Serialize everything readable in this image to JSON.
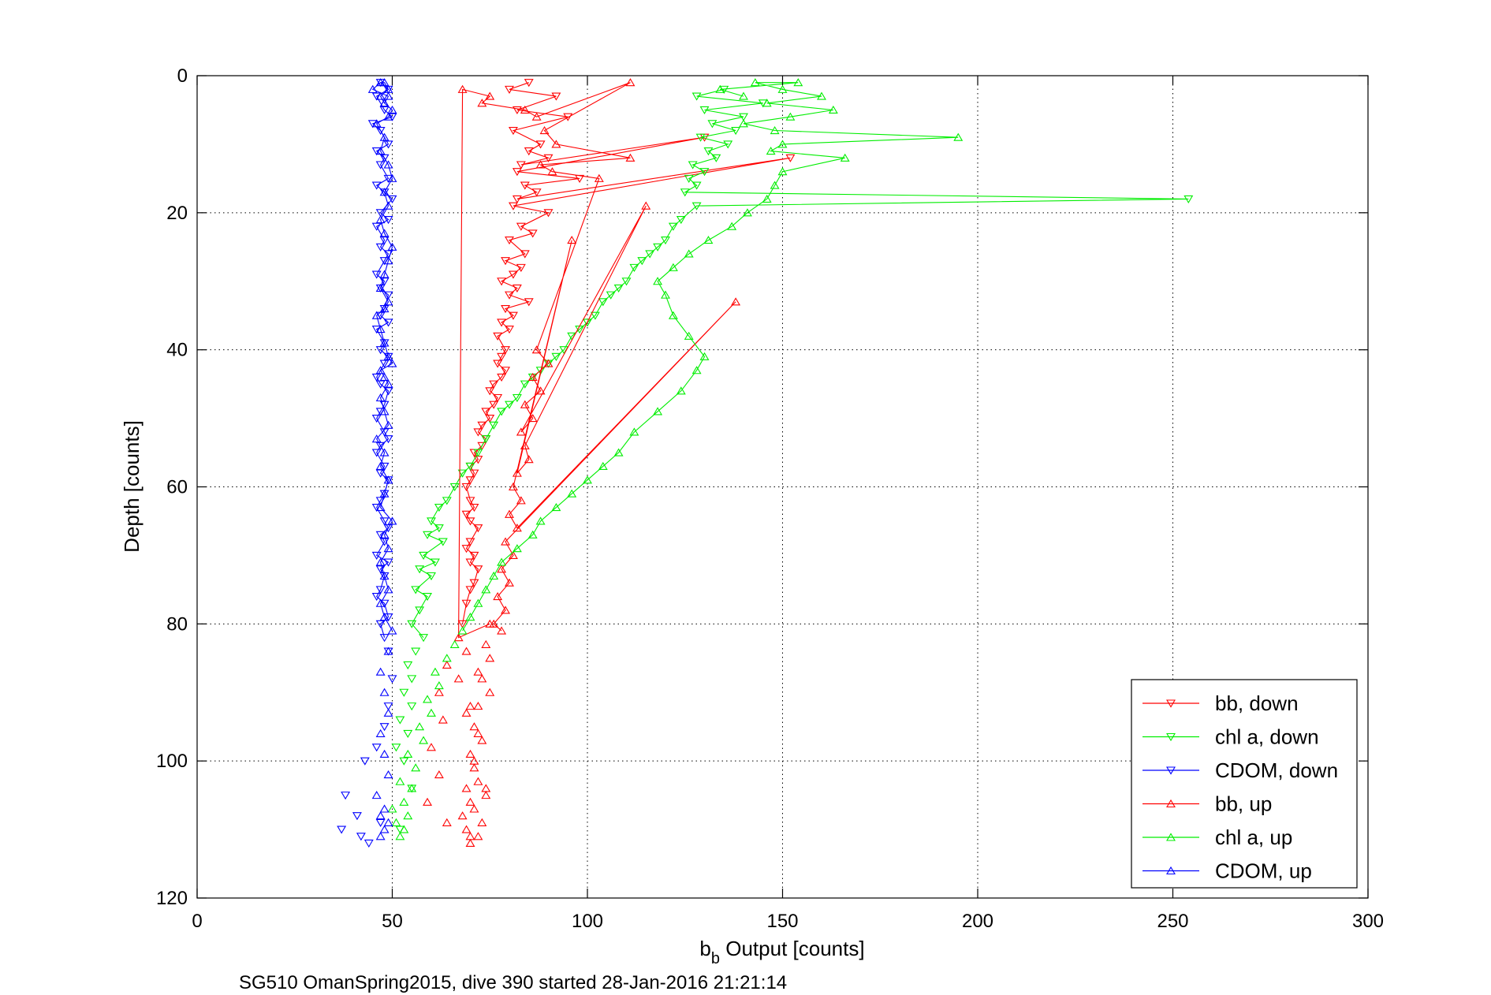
{
  "chart_data": {
    "type": "line",
    "xlabel_main": "b",
    "xlabel_sub": "b",
    "xlabel_rest": " Output [counts]",
    "ylabel": "Depth [counts]",
    "caption": "SG510 OmanSpring2015, dive 390 started 28-Jan-2016 21:21:14",
    "xlim": [
      0,
      300
    ],
    "ylim": [
      0,
      120
    ],
    "y_reversed": true,
    "grid": true,
    "legend_position": "bottom-right",
    "x_ticks": [
      "0",
      "50",
      "100",
      "150",
      "200",
      "250",
      "300"
    ],
    "y_ticks": [
      "0",
      "20",
      "40",
      "60",
      "80",
      "100",
      "120"
    ],
    "series": [
      {
        "name": "bb, down",
        "color": "#ff0000",
        "marker": "triangle-down",
        "x": [
          85,
          80,
          92,
          82,
          95,
          81,
          88,
          85,
          90,
          83,
          130,
          82,
          98,
          84,
          87,
          82,
          152,
          81,
          90,
          83,
          86,
          80,
          84,
          79,
          83,
          81,
          78,
          82,
          80,
          85,
          79,
          81,
          78,
          80,
          77,
          79,
          78,
          77,
          79,
          78,
          76,
          75,
          77,
          76,
          74,
          75,
          73,
          72,
          74,
          73,
          71,
          72,
          70,
          71,
          70,
          69,
          70,
          71,
          69,
          70,
          72,
          70,
          69,
          71,
          70,
          72,
          71,
          70,
          69,
          68
        ],
        "y": [
          1,
          2,
          3,
          5,
          6,
          8,
          10,
          11,
          12,
          13,
          9,
          14,
          15,
          16,
          17,
          18,
          12,
          19,
          20,
          22,
          23,
          24,
          26,
          27,
          28,
          29,
          30,
          31,
          32,
          33,
          34,
          35,
          36,
          37,
          38,
          40,
          41,
          42,
          43,
          44,
          45,
          46,
          47,
          48,
          49,
          50,
          51,
          52,
          53,
          54,
          55,
          56,
          57,
          58,
          59,
          60,
          62,
          63,
          64,
          65,
          66,
          68,
          69,
          70,
          71,
          72,
          74,
          75,
          77,
          80
        ]
      },
      {
        "name": "chl a, down",
        "color": "#00ee00",
        "marker": "triangle-down",
        "x": [
          135,
          128,
          145,
          130,
          140,
          132,
          138,
          129,
          136,
          131,
          133,
          127,
          130,
          126,
          128,
          125,
          254,
          128,
          124,
          122,
          120,
          118,
          116,
          114,
          112,
          110,
          108,
          106,
          104,
          102,
          100,
          98,
          96,
          94,
          92,
          90,
          88,
          86,
          84,
          82,
          80,
          78,
          76,
          74,
          72,
          70,
          68,
          66,
          64,
          62,
          60,
          62,
          59,
          63,
          58,
          61,
          57,
          60,
          56,
          59,
          57,
          55,
          58,
          56,
          54,
          55,
          53,
          55,
          52,
          54,
          51,
          53,
          55,
          52
        ],
        "y": [
          2,
          3,
          4,
          5,
          6,
          7,
          8,
          9,
          10,
          11,
          12,
          13,
          14,
          15,
          16,
          17,
          18,
          19,
          21,
          22,
          24,
          25,
          26,
          27,
          28,
          30,
          31,
          32,
          33,
          35,
          36,
          37,
          38,
          40,
          41,
          42,
          43,
          44,
          45,
          47,
          48,
          49,
          51,
          53,
          55,
          57,
          58,
          60,
          62,
          63,
          65,
          66,
          67,
          68,
          70,
          71,
          72,
          73,
          75,
          76,
          78,
          80,
          82,
          84,
          86,
          88,
          90,
          92,
          94,
          96,
          98,
          100,
          104,
          110
        ]
      },
      {
        "name": "CDOM, down",
        "color": "#0000ff",
        "marker": "triangle-down",
        "x": [
          47,
          49,
          46,
          48,
          50,
          45,
          47,
          49,
          46,
          48,
          47,
          49,
          46,
          48,
          50,
          47,
          49,
          46,
          48,
          47,
          49,
          48,
          46,
          48,
          47,
          49,
          48,
          47,
          49,
          46,
          48,
          47,
          49,
          48,
          46,
          47,
          49,
          48,
          47,
          46,
          48,
          49,
          47,
          46,
          48,
          47,
          49,
          48,
          47,
          46,
          48,
          49,
          47,
          48,
          46,
          49,
          47,
          48,
          47,
          46,
          48,
          49,
          47,
          48,
          49,
          50,
          49,
          48,
          46,
          43,
          38,
          41,
          37,
          44,
          42,
          47
        ],
        "y": [
          1,
          2,
          3,
          5,
          6,
          7,
          8,
          10,
          11,
          12,
          13,
          15,
          16,
          17,
          18,
          20,
          21,
          22,
          24,
          25,
          26,
          27,
          29,
          30,
          31,
          32,
          34,
          35,
          36,
          37,
          39,
          40,
          41,
          42,
          44,
          45,
          46,
          48,
          49,
          50,
          52,
          53,
          54,
          55,
          57,
          58,
          59,
          61,
          62,
          63,
          65,
          66,
          67,
          68,
          70,
          71,
          72,
          73,
          75,
          76,
          77,
          79,
          80,
          82,
          84,
          88,
          92,
          95,
          98,
          100,
          105,
          108,
          110,
          112,
          111,
          109
        ]
      },
      {
        "name": "bb, up",
        "color": "#ff0000",
        "marker": "triangle-up",
        "x": [
          70,
          72,
          69,
          73,
          68,
          71,
          70,
          74,
          69,
          72,
          71,
          70,
          73,
          71,
          69,
          72,
          75,
          73,
          72,
          75,
          74,
          78,
          76,
          79,
          77,
          80,
          78,
          81,
          79,
          138,
          82,
          80,
          83,
          81,
          96,
          82,
          85,
          84,
          115,
          83,
          86,
          84,
          88,
          86,
          90,
          87,
          103,
          91,
          88,
          111,
          92,
          89,
          111,
          87,
          84,
          73,
          75,
          68,
          67,
          64,
          62,
          63,
          60,
          62,
          59,
          64,
          70,
          74,
          71,
          72,
          70,
          67,
          69,
          75
        ],
        "y": [
          112,
          111,
          110,
          109,
          108,
          107,
          106,
          105,
          104,
          103,
          101,
          99,
          97,
          95,
          93,
          92,
          90,
          88,
          87,
          85,
          83,
          81,
          80,
          78,
          76,
          74,
          72,
          70,
          68,
          33,
          66,
          64,
          62,
          60,
          24,
          58,
          56,
          54,
          19,
          52,
          50,
          48,
          46,
          44,
          42,
          40,
          15,
          14,
          13,
          12,
          10,
          8,
          1,
          6,
          5,
          4,
          3,
          2,
          82,
          86,
          90,
          94,
          98,
          102,
          106,
          109,
          111,
          104,
          100,
          96,
          92,
          88,
          84,
          80
        ]
      },
      {
        "name": "chl a, up",
        "color": "#00ee00",
        "marker": "triangle-up",
        "x": [
          52,
          53,
          51,
          54,
          50,
          53,
          55,
          52,
          56,
          54,
          58,
          57,
          60,
          59,
          62,
          61,
          64,
          66,
          68,
          70,
          72,
          74,
          76,
          78,
          82,
          86,
          88,
          92,
          96,
          100,
          104,
          108,
          112,
          118,
          124,
          128,
          130,
          126,
          122,
          120,
          118,
          122,
          126,
          131,
          137,
          141,
          146,
          148,
          150,
          166,
          147,
          150,
          195,
          148,
          140,
          152,
          163,
          146,
          160,
          150,
          143,
          154,
          134,
          140
        ],
        "y": [
          111,
          110,
          109,
          108,
          107,
          106,
          104,
          103,
          101,
          99,
          97,
          95,
          93,
          91,
          89,
          87,
          85,
          83,
          81,
          79,
          77,
          75,
          73,
          71,
          69,
          67,
          65,
          63,
          61,
          59,
          57,
          55,
          52,
          49,
          46,
          43,
          41,
          38,
          35,
          32,
          30,
          28,
          26,
          24,
          22,
          20,
          18,
          16,
          14,
          12,
          11,
          10,
          9,
          8,
          7,
          6,
          5,
          4,
          3,
          2,
          1,
          1,
          2,
          3
        ]
      },
      {
        "name": "CDOM, up",
        "color": "#0000ff",
        "marker": "triangle-up",
        "x": [
          47,
          48,
          49,
          47,
          48,
          46,
          49,
          48,
          47,
          49,
          48,
          47,
          49,
          50,
          48,
          47,
          49,
          48,
          47,
          49,
          48,
          50,
          47,
          48,
          49,
          47,
          48,
          46,
          49,
          48,
          47,
          49,
          48,
          47,
          50,
          49,
          48,
          47,
          46,
          48,
          49,
          47,
          48,
          49,
          50,
          48,
          47,
          49,
          48,
          50,
          49,
          47,
          48,
          46,
          49,
          50,
          48,
          47,
          49,
          48,
          47,
          45,
          49,
          48
        ],
        "y": [
          111,
          110,
          109,
          108,
          107,
          105,
          102,
          99,
          96,
          93,
          90,
          87,
          84,
          81,
          79,
          77,
          75,
          73,
          71,
          69,
          67,
          65,
          63,
          61,
          59,
          57,
          55,
          53,
          51,
          49,
          47,
          45,
          44,
          43,
          42,
          41,
          39,
          37,
          35,
          34,
          33,
          31,
          29,
          27,
          25,
          23,
          21,
          19,
          17,
          15,
          13,
          11,
          9,
          7,
          6,
          5,
          4,
          3,
          2,
          1,
          1,
          2,
          3,
          4
        ]
      }
    ]
  }
}
